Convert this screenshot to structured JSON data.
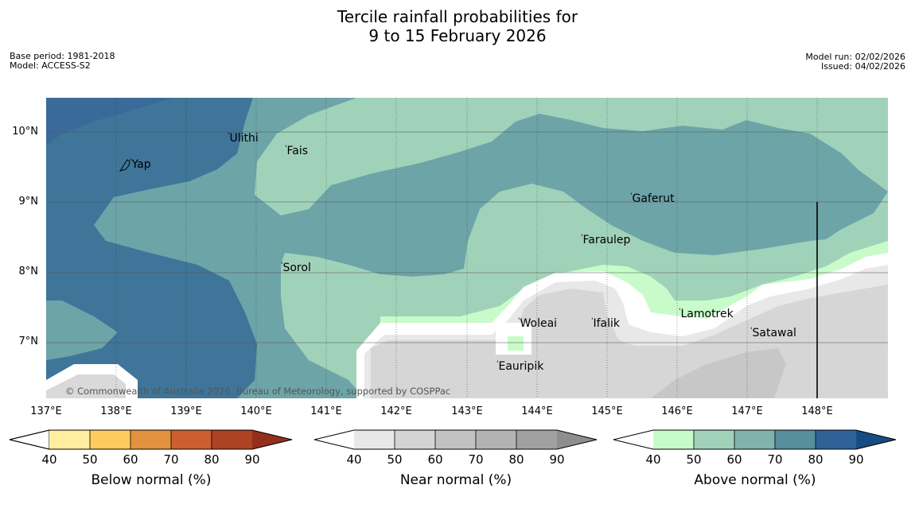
{
  "header": {
    "title_line1": "Tercile rainfall probabilities for",
    "title_line2": "9 to 15 February 2026",
    "base_period": "Base period: 1981-2018",
    "model": "Model: ACCESS-S2",
    "model_run": "Model run: 02/02/2026",
    "issued": "Issued: 04/02/2026"
  },
  "map": {
    "lat_labels": [
      "10°N",
      "9°N",
      "8°N",
      "7°N"
    ],
    "lon_labels": [
      "137°E",
      "138°E",
      "139°E",
      "140°E",
      "141°E",
      "142°E",
      "143°E",
      "144°E",
      "145°E",
      "146°E",
      "147°E",
      "148°E"
    ],
    "places": {
      "yap": "Yap",
      "ulithi": "Ulithi",
      "fais": "Fais",
      "gaferut": "Gaferut",
      "faraulep": "Faraulep",
      "sorol": "Sorol",
      "lamotrek": "Lamotrek",
      "satawal": "Satawal",
      "woleai": "Woleai",
      "ifalik": "Ifalik",
      "eauripik": "Eauripik"
    },
    "copyright": "© Commonwealth of Australia 2026, Bureau of Meteorology, supported by COSPPac"
  },
  "legends": {
    "ticks": [
      "40",
      "50",
      "60",
      "70",
      "80",
      "90"
    ],
    "below": {
      "title": "Below normal (%)",
      "colors": [
        "#ffffff",
        "#ffeda0",
        "#fecc5c",
        "#e3923f",
        "#cc5f2f",
        "#ad4323",
        "#952f1c"
      ]
    },
    "near": {
      "title": "Near normal (%)",
      "colors": [
        "#ffffff",
        "#e8e8e8",
        "#d4d4d4",
        "#c2c2c2",
        "#b3b3b3",
        "#a1a1a1",
        "#8e8e8e"
      ]
    },
    "above": {
      "title": "Above normal (%)",
      "colors": [
        "#ffffff",
        "#c7fbc9",
        "#a0d2b9",
        "#7fb3ab",
        "#568f9e",
        "#2f6398",
        "#174c82"
      ]
    }
  }
}
